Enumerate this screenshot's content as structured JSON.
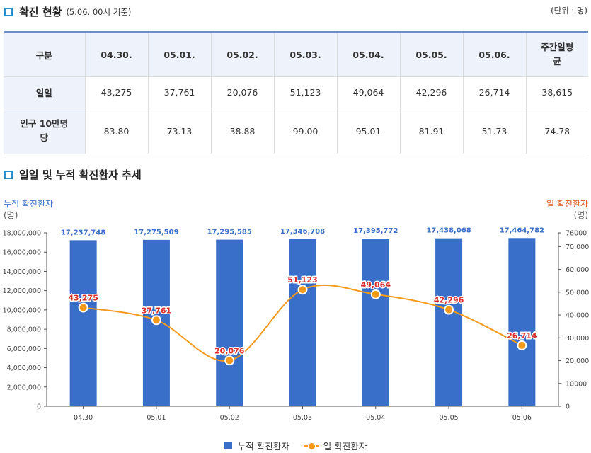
{
  "header": {
    "title": "확진 현황",
    "subtitle": "(5.06. 00시 기준)",
    "unit": "(단위 : 명)"
  },
  "table": {
    "corner": "구분",
    "columns": [
      "04.30.",
      "05.01.",
      "05.02.",
      "05.03.",
      "05.04.",
      "05.05.",
      "05.06.",
      "주간일평\n균"
    ],
    "rows": [
      {
        "label": "일일",
        "values": [
          "43,275",
          "37,761",
          "20,076",
          "51,123",
          "49,064",
          "42,296",
          "26,714",
          "38,615"
        ]
      },
      {
        "label": "인구 10만명\n당",
        "values": [
          "83.80",
          "73.13",
          "38.88",
          "99.00",
          "95.01",
          "81.91",
          "51.73",
          "74.78"
        ]
      }
    ]
  },
  "trend": {
    "title": "일일 및 누적 확진환자 추세",
    "left_axis_label": "누적 확진환자",
    "left_axis_unit": "(명)",
    "right_axis_label": "일 확진환자",
    "right_axis_unit": "(명)"
  },
  "chart_data": {
    "type": "bar",
    "combo": "bar + line (dual axis)",
    "categories": [
      "04.30",
      "05.01",
      "05.02",
      "05.03",
      "05.04",
      "05.05",
      "05.06"
    ],
    "series": [
      {
        "name": "누적 확진환자",
        "type": "bar",
        "axis": "left",
        "color": "#3a6fc9",
        "values": [
          17237748,
          17275509,
          17295585,
          17346708,
          17395772,
          17438068,
          17464782
        ],
        "labels": [
          "17,237,748",
          "17,275,509",
          "17,295,585",
          "17,346,708",
          "17,395,772",
          "17,438,068",
          "17,464,782"
        ]
      },
      {
        "name": "일 확진환자",
        "type": "line",
        "axis": "right",
        "color": "#f39a1d",
        "label_color": "#d9302b",
        "values": [
          43275,
          37761,
          20076,
          51123,
          49064,
          42296,
          26714
        ],
        "labels": [
          "43,275",
          "37,761",
          "20,076",
          "51,123",
          "49,064",
          "42,296",
          "26,714"
        ]
      }
    ],
    "left_ylim": [
      0,
      18000000
    ],
    "left_ticks": [
      "0",
      "2,000,000",
      "4,000,000",
      "6,000,000",
      "8,000,000",
      "10,000,000",
      "12,000,000",
      "14,000,000",
      "16,000,000",
      "18,000,000"
    ],
    "right_ylim": [
      0,
      76000
    ],
    "right_ticks": [
      "0",
      "10000",
      "20,000",
      "30,000",
      "40,000",
      "50,000",
      "60,000",
      "70,000",
      "76000"
    ],
    "grid": false,
    "legend_position": "bottom-center"
  }
}
